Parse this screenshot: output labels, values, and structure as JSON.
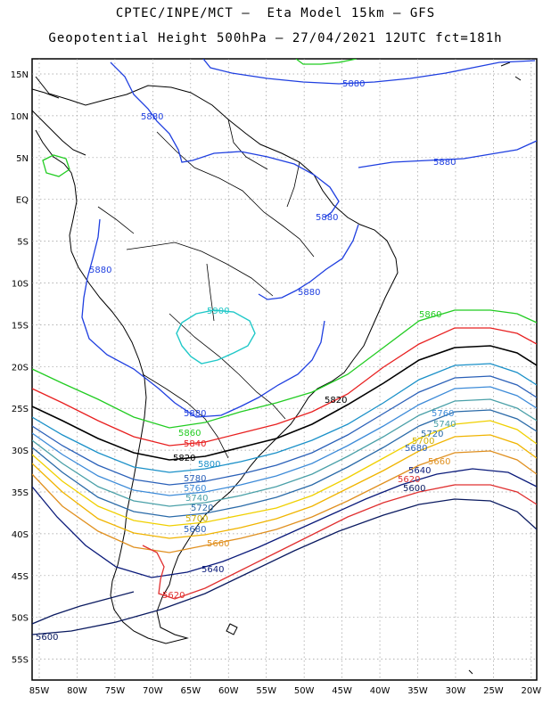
{
  "title_line1": "CPTEC/INPE/MCT –  Eta Model 15km – GFS",
  "title_line2": "Geopotential Height 500hPa – 27/04/2021 12UTC fct=181h",
  "lat_labels": [
    "15N",
    "10N",
    "5N",
    "EQ",
    "5S",
    "10S",
    "15S",
    "20S",
    "25S",
    "30S",
    "35S",
    "40S",
    "45S",
    "50S",
    "55S"
  ],
  "lon_labels": [
    "85W",
    "80W",
    "75W",
    "70W",
    "65W",
    "60W",
    "55W",
    "50W",
    "45W",
    "40W",
    "35W",
    "30W",
    "25W",
    "20W"
  ],
  "contour_levels": [
    {
      "value": "5880",
      "color": "#1f3fe0"
    },
    {
      "value": "5860",
      "color": "#22cc22"
    },
    {
      "value": "5840",
      "color": "#e82020"
    },
    {
      "value": "5820",
      "color": "#000000"
    },
    {
      "value": "5800",
      "color": "#1a90c8"
    },
    {
      "value": "5780",
      "color": "#2a60b8"
    },
    {
      "value": "5760",
      "color": "#3d8bd8"
    },
    {
      "value": "5740",
      "color": "#4aa0a8"
    },
    {
      "value": "5720",
      "color": "#2a6aa8"
    },
    {
      "value": "5700",
      "color": "#f0d000"
    },
    {
      "value": "5680",
      "color": "#f0b400"
    },
    {
      "value": "5660",
      "color": "#e09020"
    },
    {
      "value": "5640",
      "color": "#0a1a7a"
    },
    {
      "value": "5620",
      "color": "#e03030"
    },
    {
      "value": "5600",
      "color": "#0a1a60"
    },
    {
      "value": "5900",
      "color": "#20c8c8"
    }
  ]
}
